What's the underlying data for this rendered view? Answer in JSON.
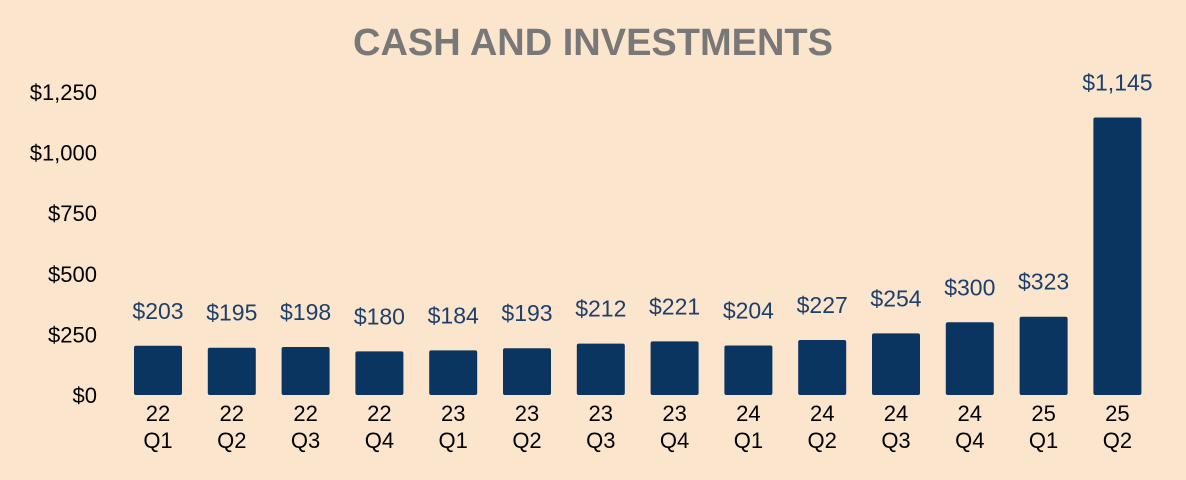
{
  "chart_data": {
    "type": "bar",
    "title": "CASH AND INVESTMENTS",
    "xlabel": "",
    "ylabel": "",
    "ylim": [
      0,
      1250
    ],
    "yticks": [
      0,
      250,
      500,
      750,
      1000,
      1250
    ],
    "ytick_labels": [
      "$0",
      "$250",
      "$500",
      "$750",
      "$1,000",
      "$1,250"
    ],
    "grid": false,
    "legend": "none",
    "categories": [
      [
        "22",
        "Q1"
      ],
      [
        "22",
        "Q2"
      ],
      [
        "22",
        "Q3"
      ],
      [
        "22",
        "Q4"
      ],
      [
        "23",
        "Q1"
      ],
      [
        "23",
        "Q2"
      ],
      [
        "23",
        "Q3"
      ],
      [
        "23",
        "Q4"
      ],
      [
        "24",
        "Q1"
      ],
      [
        "24",
        "Q2"
      ],
      [
        "24",
        "Q3"
      ],
      [
        "24",
        "Q4"
      ],
      [
        "25",
        "Q1"
      ],
      [
        "25",
        "Q2"
      ]
    ],
    "values": [
      203,
      195,
      198,
      180,
      184,
      193,
      212,
      221,
      204,
      227,
      254,
      300,
      323,
      1145
    ],
    "data_labels": [
      "$203",
      "$195",
      "$198",
      "$180",
      "$184",
      "$193",
      "$212",
      "$221",
      "$204",
      "$227",
      "$254",
      "$300",
      "$323",
      "$1,145"
    ]
  },
  "colors": {
    "background": "#fce5cd",
    "bar": "#0b3561",
    "title": "#787878",
    "data_label": "#1d3f6b",
    "axis_text": "#000000"
  }
}
